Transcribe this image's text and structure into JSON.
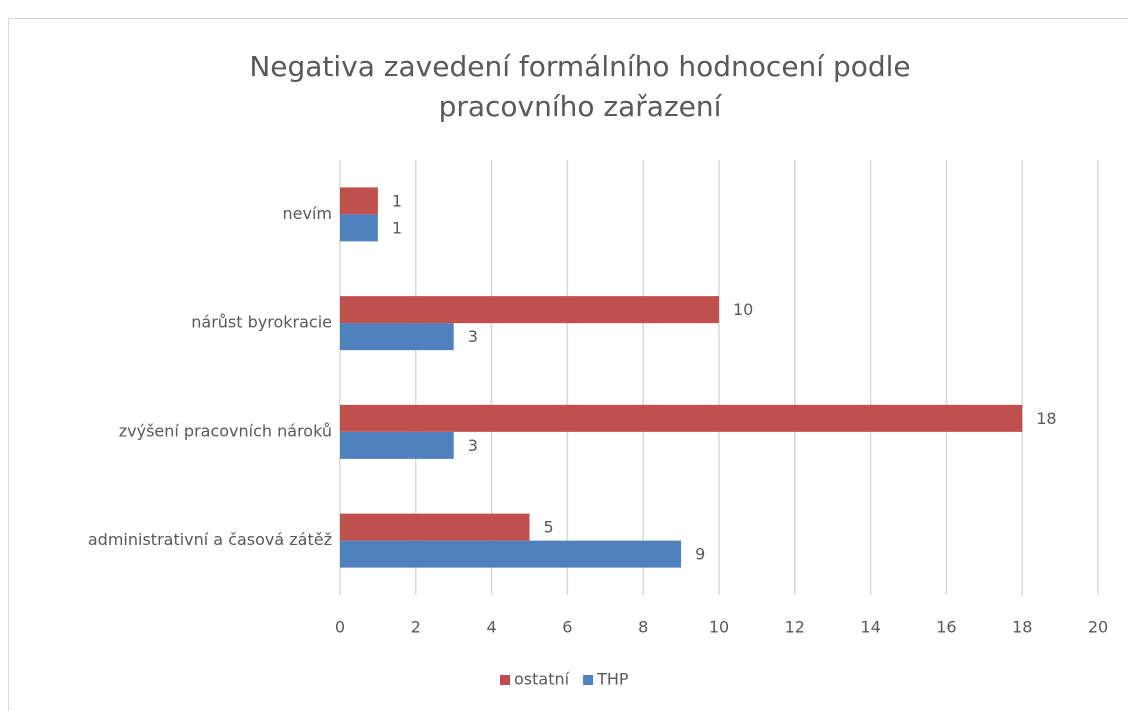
{
  "chart_data": {
    "type": "hbar",
    "title": [
      "Negativa zavedení formálního hodnocení podle",
      "pracovního zařazení"
    ],
    "categories": [
      "administrativní a časová zátěž",
      "zvýšení pracovních nároků",
      "nárůst byrokracie",
      "nevím"
    ],
    "series": [
      {
        "name": "ostatní",
        "color": "#c0504d",
        "values": [
          5,
          18,
          10,
          1
        ]
      },
      {
        "name": "THP",
        "color": "#4f81bd",
        "values": [
          9,
          3,
          3,
          1
        ]
      }
    ],
    "xlim": [
      0,
      20
    ],
    "xticks": [
      0,
      2,
      4,
      6,
      8,
      10,
      12,
      14,
      16,
      18,
      20
    ],
    "grid": true,
    "legend": "bottom"
  }
}
